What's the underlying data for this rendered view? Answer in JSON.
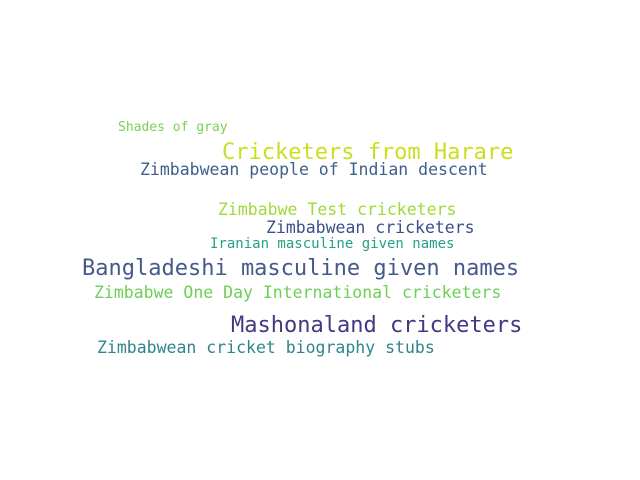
{
  "cloud": {
    "words": [
      {
        "text": "Shades of gray",
        "color": "#7ad151"
      },
      {
        "text": "Cricketers from Harare",
        "color": "#c8e020"
      },
      {
        "text": "Zimbabwean people of Indian descent",
        "color": "#3e5f8a"
      },
      {
        "text": "Zimbabwe Test cricketers",
        "color": "#a0da39"
      },
      {
        "text": "Zimbabwean cricketers",
        "color": "#3b4f8a"
      },
      {
        "text": "Iranian masculine given names",
        "color": "#25a184"
      },
      {
        "text": "Bangladeshi masculine given names",
        "color": "#46598b"
      },
      {
        "text": "Zimbabwe One Day International cricketers",
        "color": "#6ece58"
      },
      {
        "text": "Mashonaland cricketers",
        "color": "#453781"
      },
      {
        "text": "Zimbabwean cricket biography stubs",
        "color": "#31838e"
      }
    ]
  }
}
